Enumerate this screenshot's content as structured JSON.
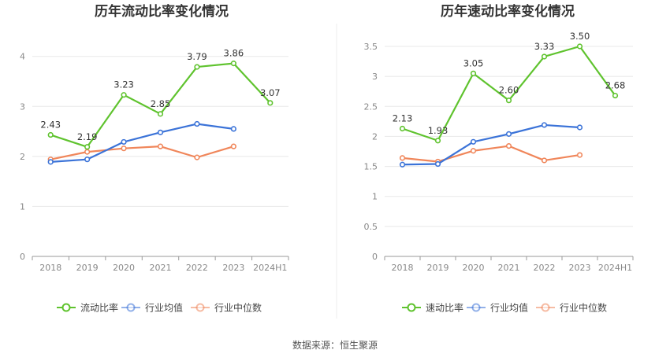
{
  "source": "数据来源：恒生聚源",
  "chart_data": [
    {
      "type": "line",
      "title": "历年流动比率变化情况",
      "categories": [
        "2018",
        "2019",
        "2020",
        "2021",
        "2022",
        "2023",
        "2024H1"
      ],
      "ylim": [
        0,
        4.2
      ],
      "yticks": [
        0,
        1,
        2,
        3,
        4
      ],
      "grid": true,
      "legend_position": "bottom",
      "series": [
        {
          "name": "流动比率",
          "color": "#5fc32e",
          "values": [
            2.43,
            2.19,
            3.23,
            2.85,
            3.79,
            3.86,
            3.07
          ],
          "labels": [
            "2.43",
            "2.19",
            "3.23",
            "2.85",
            "3.79",
            "3.86",
            "3.07"
          ]
        },
        {
          "name": "行业均值",
          "color": "#3b73d8",
          "values": [
            1.89,
            1.94,
            2.29,
            2.48,
            2.65,
            2.55,
            null
          ]
        },
        {
          "name": "行业中位数",
          "color": "#f0865a",
          "values": [
            1.94,
            2.09,
            2.16,
            2.2,
            1.98,
            2.2,
            null
          ]
        }
      ]
    },
    {
      "type": "line",
      "title": "历年速动比率变化情况",
      "categories": [
        "2018",
        "2019",
        "2020",
        "2021",
        "2022",
        "2023",
        "2024H1"
      ],
      "ylim": [
        0,
        3.5
      ],
      "yticks": [
        0,
        0.5,
        1,
        1.5,
        2,
        2.5,
        3,
        3.5
      ],
      "grid": true,
      "legend_position": "bottom",
      "series": [
        {
          "name": "速动比率",
          "color": "#5fc32e",
          "values": [
            2.13,
            1.93,
            3.05,
            2.6,
            3.33,
            3.5,
            2.68
          ],
          "labels": [
            "2.13",
            "1.93",
            "3.05",
            "2.60",
            "3.33",
            "3.50",
            "2.68"
          ]
        },
        {
          "name": "行业均值",
          "color": "#3b73d8",
          "values": [
            1.53,
            1.54,
            1.91,
            2.04,
            2.19,
            2.15,
            null
          ]
        },
        {
          "name": "行业中位数",
          "color": "#f0865a",
          "values": [
            1.64,
            1.58,
            1.76,
            1.84,
            1.6,
            1.69,
            null
          ]
        }
      ]
    }
  ]
}
